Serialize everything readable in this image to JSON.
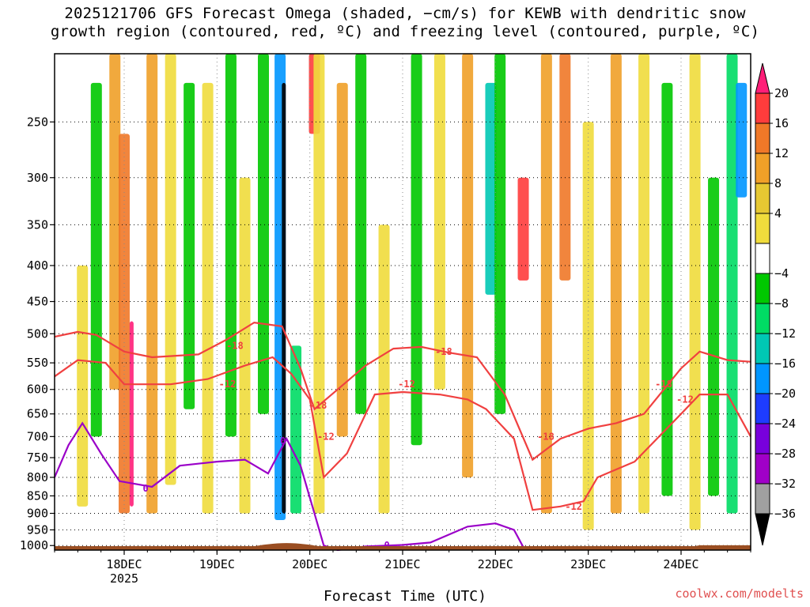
{
  "title": {
    "line1": "2025121706 GFS Forecast Omega (shaded, −cm/s) for KEWB with dendritic snow",
    "line2": "growth region (contoured, red, ºC) and freezing level (contoured, purple, ºC)"
  },
  "credit": "coolwx.com/modelts",
  "chart_data": {
    "type": "heatmap",
    "xlabel": "Forecast Time (UTC)",
    "ylabel": "",
    "x_ticks": [
      {
        "label": "18DEC",
        "sub": "2025",
        "day": 18
      },
      {
        "label": "19DEC",
        "sub": "",
        "day": 19
      },
      {
        "label": "20DEC",
        "sub": "",
        "day": 20
      },
      {
        "label": "21DEC",
        "sub": "",
        "day": 21
      },
      {
        "label": "22DEC",
        "sub": "",
        "day": 22
      },
      {
        "label": "23DEC",
        "sub": "",
        "day": 23
      },
      {
        "label": "24DEC",
        "sub": "",
        "day": 24
      }
    ],
    "xlim_days": [
      17.25,
      24.75
    ],
    "y_ticks": [
      250,
      300,
      350,
      400,
      450,
      500,
      550,
      600,
      650,
      700,
      750,
      800,
      850,
      900,
      950,
      1000
    ],
    "ylim_hpa": [
      200,
      1015
    ],
    "y_scale": "log",
    "grid": true,
    "colorbar": {
      "labels": [
        "20",
        "16",
        "12",
        "8",
        "4",
        "−4",
        "−8",
        "−12",
        "−16",
        "−20",
        "−24",
        "−28",
        "−32",
        "−36"
      ],
      "colors": [
        "#ff1e78",
        "#ff3c3c",
        "#f07828",
        "#f0a028",
        "#e6c832",
        "#f0dc3c",
        "#ffffff",
        "#00c800",
        "#00dc64",
        "#00c8b4",
        "#0096ff",
        "#1e3cff",
        "#7800dc",
        "#a000c8",
        "#a0a0a0",
        "#000000"
      ]
    },
    "dgz_contour_labels": [
      "-18",
      "-12"
    ],
    "freezing_contour_labels": [
      "0"
    ],
    "omega_columns": [
      {
        "day": 17.55,
        "top": 400,
        "bottom": 880,
        "value": 4
      },
      {
        "day": 17.7,
        "top": 220,
        "bottom": 700,
        "value": -8
      },
      {
        "day": 17.9,
        "top": 200,
        "bottom": 600,
        "value": 8
      },
      {
        "day": 18.0,
        "top": 260,
        "bottom": 900,
        "value": 12
      },
      {
        "day": 18.08,
        "top": 480,
        "bottom": 880,
        "value": 20
      },
      {
        "day": 18.3,
        "top": 200,
        "bottom": 900,
        "value": 8
      },
      {
        "day": 18.5,
        "top": 200,
        "bottom": 820,
        "value": 4
      },
      {
        "day": 18.7,
        "top": 220,
        "bottom": 640,
        "value": -8
      },
      {
        "day": 18.9,
        "top": 220,
        "bottom": 900,
        "value": 4
      },
      {
        "day": 19.15,
        "top": 200,
        "bottom": 700,
        "value": -8
      },
      {
        "day": 19.3,
        "top": 300,
        "bottom": 900,
        "value": 4
      },
      {
        "day": 19.5,
        "top": 200,
        "bottom": 650,
        "value": -8
      },
      {
        "day": 19.68,
        "top": 200,
        "bottom": 920,
        "value": -20
      },
      {
        "day": 19.72,
        "top": 220,
        "bottom": 900,
        "value": -36
      },
      {
        "day": 19.85,
        "top": 520,
        "bottom": 900,
        "value": -12
      },
      {
        "day": 20.05,
        "top": 200,
        "bottom": 260,
        "value": 16
      },
      {
        "day": 20.1,
        "top": 200,
        "bottom": 900,
        "value": 4
      },
      {
        "day": 20.35,
        "top": 220,
        "bottom": 700,
        "value": 8
      },
      {
        "day": 20.55,
        "top": 200,
        "bottom": 650,
        "value": -8
      },
      {
        "day": 20.8,
        "top": 350,
        "bottom": 900,
        "value": 4
      },
      {
        "day": 21.15,
        "top": 200,
        "bottom": 720,
        "value": -8
      },
      {
        "day": 21.4,
        "top": 200,
        "bottom": 600,
        "value": 4
      },
      {
        "day": 21.7,
        "top": 200,
        "bottom": 800,
        "value": 8
      },
      {
        "day": 21.95,
        "top": 220,
        "bottom": 440,
        "value": -16
      },
      {
        "day": 22.05,
        "top": 200,
        "bottom": 650,
        "value": -8
      },
      {
        "day": 22.3,
        "top": 300,
        "bottom": 420,
        "value": 16
      },
      {
        "day": 22.55,
        "top": 200,
        "bottom": 900,
        "value": 8
      },
      {
        "day": 22.75,
        "top": 200,
        "bottom": 420,
        "value": 12
      },
      {
        "day": 23.0,
        "top": 250,
        "bottom": 950,
        "value": 4
      },
      {
        "day": 23.3,
        "top": 200,
        "bottom": 900,
        "value": 8
      },
      {
        "day": 23.6,
        "top": 200,
        "bottom": 900,
        "value": 4
      },
      {
        "day": 23.85,
        "top": 220,
        "bottom": 850,
        "value": -8
      },
      {
        "day": 24.15,
        "top": 200,
        "bottom": 950,
        "value": 4
      },
      {
        "day": 24.35,
        "top": 300,
        "bottom": 850,
        "value": -8
      },
      {
        "day": 24.55,
        "top": 200,
        "bottom": 900,
        "value": -12
      },
      {
        "day": 24.65,
        "top": 220,
        "bottom": 320,
        "value": -20
      }
    ],
    "dgz_minus18": [
      [
        17.25,
        505
      ],
      [
        17.5,
        497
      ],
      [
        17.7,
        502
      ],
      [
        18.0,
        530
      ],
      [
        18.3,
        540
      ],
      [
        18.8,
        535
      ],
      [
        19.1,
        510
      ],
      [
        19.4,
        482
      ],
      [
        19.7,
        488
      ],
      [
        19.9,
        560
      ],
      [
        20.05,
        640
      ],
      [
        20.3,
        600
      ],
      [
        20.6,
        555
      ],
      [
        20.9,
        525
      ],
      [
        21.2,
        522
      ],
      [
        21.5,
        532
      ],
      [
        21.8,
        540
      ],
      [
        22.1,
        610
      ],
      [
        22.4,
        755
      ],
      [
        22.7,
        705
      ],
      [
        23.0,
        682
      ],
      [
        23.3,
        670
      ],
      [
        23.6,
        650
      ],
      [
        24.0,
        560
      ],
      [
        24.2,
        530
      ],
      [
        24.5,
        545
      ],
      [
        24.75,
        548
      ]
    ],
    "dgz_minus12": [
      [
        17.25,
        575
      ],
      [
        17.5,
        545
      ],
      [
        17.8,
        550
      ],
      [
        18.0,
        590
      ],
      [
        18.5,
        590
      ],
      [
        18.9,
        580
      ],
      [
        19.3,
        555
      ],
      [
        19.6,
        540
      ],
      [
        19.8,
        570
      ],
      [
        20.0,
        620
      ],
      [
        20.15,
        800
      ],
      [
        20.4,
        740
      ],
      [
        20.7,
        610
      ],
      [
        21.0,
        605
      ],
      [
        21.4,
        610
      ],
      [
        21.7,
        620
      ],
      [
        21.9,
        640
      ],
      [
        22.2,
        705
      ],
      [
        22.4,
        890
      ],
      [
        22.7,
        880
      ],
      [
        22.95,
        865
      ],
      [
        23.1,
        800
      ],
      [
        23.5,
        760
      ],
      [
        24.0,
        650
      ],
      [
        24.2,
        610
      ],
      [
        24.5,
        610
      ],
      [
        24.75,
        700
      ]
    ],
    "freezing_0": [
      [
        17.25,
        800
      ],
      [
        17.4,
        720
      ],
      [
        17.55,
        670
      ],
      [
        17.75,
        740
      ],
      [
        17.95,
        810
      ],
      [
        18.3,
        825
      ],
      [
        18.6,
        770
      ],
      [
        19.0,
        760
      ],
      [
        19.3,
        755
      ],
      [
        19.55,
        790
      ],
      [
        19.75,
        705
      ],
      [
        19.9,
        770
      ],
      [
        20.05,
        900
      ],
      [
        20.15,
        1000
      ],
      [
        20.3,
        1015
      ],
      [
        20.6,
        1003
      ],
      [
        21.0,
        998
      ],
      [
        21.3,
        990
      ],
      [
        21.7,
        940
      ],
      [
        22.0,
        930
      ],
      [
        22.2,
        950
      ],
      [
        22.3,
        1005
      ]
    ]
  }
}
